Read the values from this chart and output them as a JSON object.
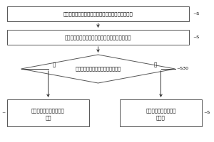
{
  "bg_color": "#ffffff",
  "box_color": "#ffffff",
  "border_color": "#555555",
  "arrow_color": "#333333",
  "text_color": "#000000",
  "box1_text": "控制打孔装置停止工作，以获取至少一根烟支不打孔",
  "box2_text": "控制漏气检测器对全部未打孔的烟支进行漏气检测",
  "diamond_text": "判断全部未打孔的烟支是否均不合格",
  "box4_line1": "则判定所述漏气检测器为",
  "box4_line2": "正常",
  "box5_line1": "则判定所述漏气检测器",
  "box5_line2": "为失效",
  "label_s10": "~S",
  "label_s20": "~S",
  "label_s30": "~S30",
  "label_s40": "~",
  "label_s50": "~S",
  "label_yes": "是",
  "label_no": "否",
  "fig_width": 3.0,
  "fig_height": 2.0,
  "dpi": 100
}
